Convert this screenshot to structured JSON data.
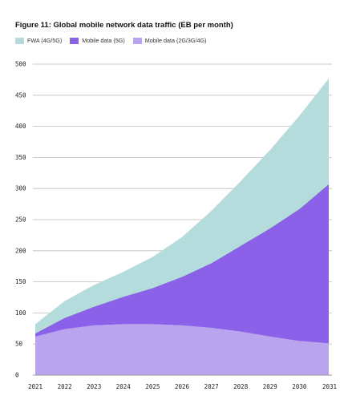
{
  "chart_data": {
    "type": "area",
    "stacked": true,
    "title": "Figure 11: Global mobile network data traffic (EB per month)",
    "xlabel": "",
    "ylabel": "",
    "categories": [
      "2021",
      "2022",
      "2023",
      "2024",
      "2025",
      "2026",
      "2027",
      "2028",
      "2029",
      "2030",
      "2031"
    ],
    "yticks": [
      0,
      50,
      100,
      150,
      200,
      250,
      300,
      350,
      400,
      450,
      500
    ],
    "ylim": [
      0,
      500
    ],
    "grid": "horizontal",
    "legend_position": "top-left",
    "series": [
      {
        "name": "Mobile data (2G/3G/4G)",
        "color": "#b9a4ee",
        "values": [
          62,
          74,
          80,
          82,
          82,
          80,
          76,
          70,
          62,
          55,
          51
        ]
      },
      {
        "name": "Mobile data (5G)",
        "color": "#8a61e8",
        "values": [
          5,
          18,
          30,
          44,
          58,
          78,
          104,
          138,
          174,
          212,
          256
        ]
      },
      {
        "name": "FWA (4G/5G)",
        "color": "#b4dcdd",
        "values": [
          15,
          27,
          35,
          40,
          50,
          64,
          84,
          104,
          126,
          150,
          170
        ]
      }
    ],
    "legend_order": [
      "FWA (4G/5G)",
      "Mobile data (5G)",
      "Mobile data (2G/3G/4G)"
    ]
  }
}
